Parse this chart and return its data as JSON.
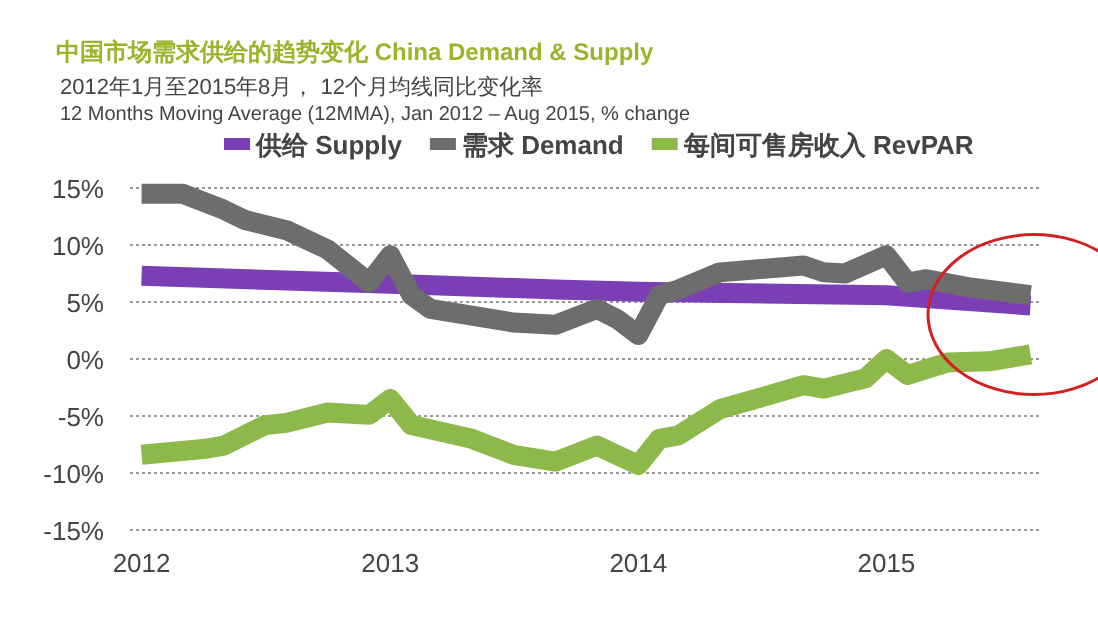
{
  "chart_data": {
    "type": "line",
    "title": "中国市场需求供给的趋势变化 China Demand & Supply",
    "subtitle": "2012年1月至2015年8月， 12个月均线同比变化率\n12 Months Moving Average (12MMA), Jan 2012 – Aug 2015, % change",
    "series": [
      {
        "name": "供给 Supply",
        "color": "#7b3fb5",
        "x": [
          "2012-01",
          "2013-01",
          "2013-09",
          "2014-01",
          "2015-01",
          "2015-08"
        ],
        "values": [
          7.3,
          6.6,
          6.1,
          5.9,
          5.6,
          4.7
        ]
      },
      {
        "name": "需求 Demand",
        "color": "#6d6d6d",
        "x": [
          "2012-01",
          "2012-03",
          "2012-05",
          "2012-06",
          "2012-08",
          "2012-10",
          "2012-12",
          "2013-01",
          "2013-02",
          "2013-03",
          "2013-07",
          "2013-09",
          "2013-11",
          "2013-12",
          "2014-01",
          "2014-02",
          "2014-03",
          "2014-05",
          "2014-09",
          "2014-10",
          "2014-11",
          "2015-01",
          "2015-02",
          "2015-03",
          "2015-05",
          "2015-08"
        ],
        "values": [
          14.5,
          14.5,
          13.1,
          12.2,
          11.3,
          9.6,
          6.7,
          9.1,
          5.6,
          4.4,
          3.2,
          3.0,
          4.4,
          3.5,
          2.1,
          5.6,
          6.1,
          7.6,
          8.2,
          7.6,
          7.5,
          9.1,
          6.7,
          7.0,
          6.3,
          5.6
        ]
      },
      {
        "name": "每间可售房收入 RevPAR",
        "color": "#8db84a",
        "x": [
          "2012-01",
          "2012-04",
          "2012-05",
          "2012-07",
          "2012-08",
          "2012-10",
          "2012-12",
          "2013-01",
          "2013-02",
          "2013-05",
          "2013-07",
          "2013-09",
          "2013-11",
          "2014-01",
          "2014-02",
          "2014-03",
          "2014-05",
          "2014-09",
          "2014-10",
          "2014-12",
          "2015-01",
          "2015-02",
          "2015-04",
          "2015-06",
          "2015-08"
        ],
        "values": [
          -8.4,
          -7.9,
          -7.6,
          -5.8,
          -5.6,
          -4.7,
          -4.9,
          -3.5,
          -5.8,
          -7.0,
          -8.4,
          -9.0,
          -7.6,
          -9.3,
          -7.0,
          -6.7,
          -4.4,
          -2.3,
          -2.6,
          -1.7,
          0.0,
          -1.4,
          -0.3,
          -0.2,
          0.4
        ]
      }
    ],
    "xlim": [
      "2011-12-15",
      "2015-08-15"
    ],
    "xticks": [
      "2012",
      "2013",
      "2014",
      "2015"
    ],
    "ylim": [
      -15,
      15
    ],
    "yticks": [
      {
        "value": 15,
        "label": "15%"
      },
      {
        "value": 10,
        "label": "10%"
      },
      {
        "value": 5,
        "label": "5%"
      },
      {
        "value": 0,
        "label": "0%"
      },
      {
        "value": -5,
        "label": "-5%"
      },
      {
        "value": -10,
        "label": "-10%"
      },
      {
        "value": -15,
        "label": "-15%"
      }
    ],
    "grid": "y",
    "legend": "top",
    "line_style": "solid",
    "marker": "none"
  }
}
